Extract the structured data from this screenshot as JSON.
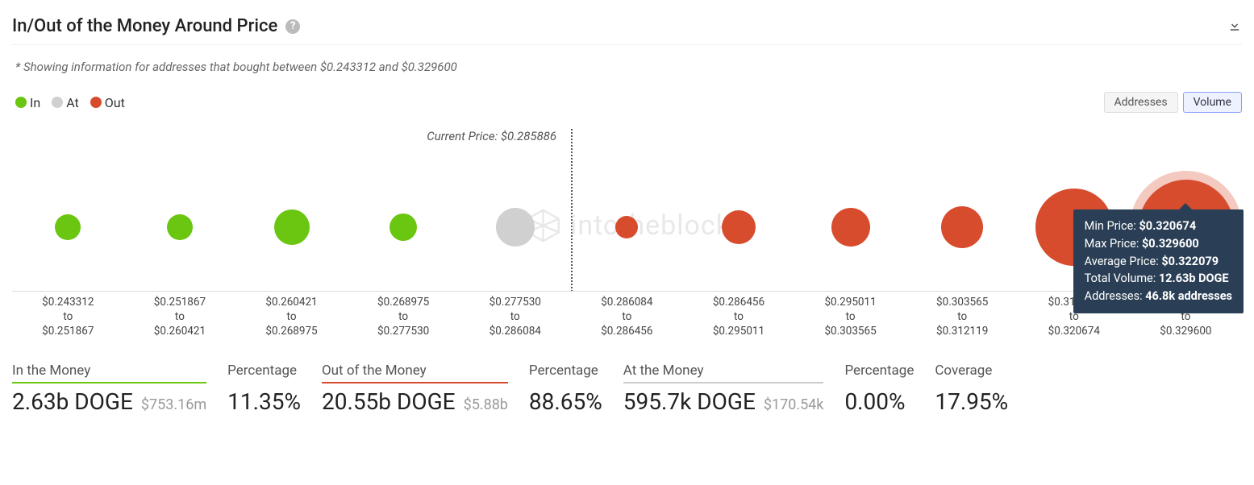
{
  "title": "In/Out of the Money Around Price",
  "subtitle": "* Showing information for addresses that bought between $0.243312 and $0.329600",
  "colors": {
    "in": "#6ac610",
    "at": "#d0d0d0",
    "out": "#d84c2e",
    "tooltip_bg": "#2a3f55",
    "text_muted": "#999999"
  },
  "legend": [
    {
      "label": "In",
      "color": "#6ac610"
    },
    {
      "label": "At",
      "color": "#d0d0d0"
    },
    {
      "label": "Out",
      "color": "#d84c2e"
    }
  ],
  "toggles": {
    "options": [
      "Addresses",
      "Volume"
    ],
    "active": "Volume"
  },
  "current_price_label": "Current Price: $0.285886",
  "divider_position_pct": 45.45,
  "watermark": "intotheblock",
  "bubbles": [
    {
      "range_from": "$0.243312",
      "range_to": "$0.251867",
      "color": "#6ac610",
      "size": 32
    },
    {
      "range_from": "$0.251867",
      "range_to": "$0.260421",
      "color": "#6ac610",
      "size": 32
    },
    {
      "range_from": "$0.260421",
      "range_to": "$0.268975",
      "color": "#6ac610",
      "size": 44
    },
    {
      "range_from": "$0.268975",
      "range_to": "$0.277530",
      "color": "#6ac610",
      "size": 34
    },
    {
      "range_from": "$0.277530",
      "range_to": "$0.286084",
      "color": "#d0d0d0",
      "size": 48
    },
    {
      "range_from": "$0.286084",
      "range_to": "$0.286456",
      "color": "#d84c2e",
      "size": 28
    },
    {
      "range_from": "$0.286456",
      "range_to": "$0.295011",
      "color": "#d84c2e",
      "size": 42
    },
    {
      "range_from": "$0.295011",
      "range_to": "$0.303565",
      "color": "#d84c2e",
      "size": 48
    },
    {
      "range_from": "$0.303565",
      "range_to": "$0.312119",
      "color": "#d84c2e",
      "size": 52
    },
    {
      "range_from": "$0.312119",
      "range_to": "$0.320674",
      "color": "#d84c2e",
      "size": 96
    },
    {
      "range_from": "$0.320674",
      "range_to": "$0.329600",
      "color": "#d84c2e",
      "size": 118,
      "halo": true
    }
  ],
  "tooltip": {
    "target_index": 10,
    "rows": [
      {
        "k": "Min Price:",
        "v": "$0.320674"
      },
      {
        "k": "Max Price:",
        "v": "$0.329600"
      },
      {
        "k": "Average Price:",
        "v": "$0.322079"
      },
      {
        "k": "Total Volume:",
        "v": "12.63b DOGE"
      },
      {
        "k": "Addresses:",
        "v": "46.8k addresses"
      }
    ]
  },
  "summary": [
    {
      "label": "In the Money",
      "underline": "green",
      "value": "2.63b DOGE",
      "sub": "$753.16m"
    },
    {
      "label": "Percentage",
      "underline": "none",
      "value": "11.35%"
    },
    {
      "label": "Out of the Money",
      "underline": "red",
      "value": "20.55b DOGE",
      "sub": "$5.88b"
    },
    {
      "label": "Percentage",
      "underline": "none",
      "value": "88.65%"
    },
    {
      "label": "At the Money",
      "underline": "gray",
      "value": "595.7k DOGE",
      "sub": "$170.54k"
    },
    {
      "label": "Percentage",
      "underline": "none",
      "value": "0.00%"
    },
    {
      "label": "Coverage",
      "underline": "none",
      "value": "17.95%"
    }
  ]
}
